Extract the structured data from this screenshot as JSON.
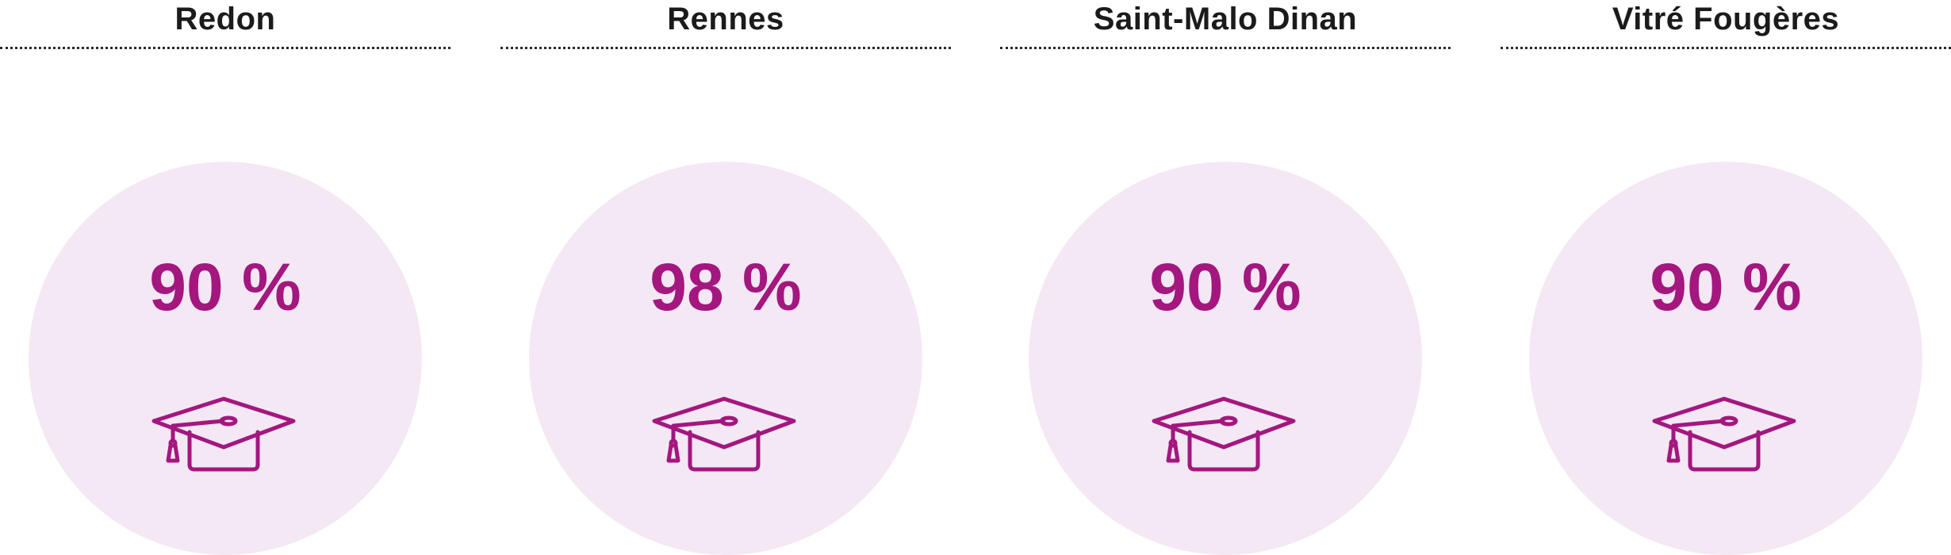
{
  "accent_color": "#a3177f",
  "circle_color": "#f4e8f4",
  "panels": [
    {
      "title": "Redon",
      "value": "90 %",
      "icon": "graduation-cap-icon"
    },
    {
      "title": "Rennes",
      "value": "98 %",
      "icon": "graduation-cap-icon"
    },
    {
      "title": "Saint-Malo Dinan",
      "value": "90 %",
      "icon": "graduation-cap-icon"
    },
    {
      "title": "Vitré Fougères",
      "value": "90 %",
      "icon": "graduation-cap-icon"
    }
  ]
}
